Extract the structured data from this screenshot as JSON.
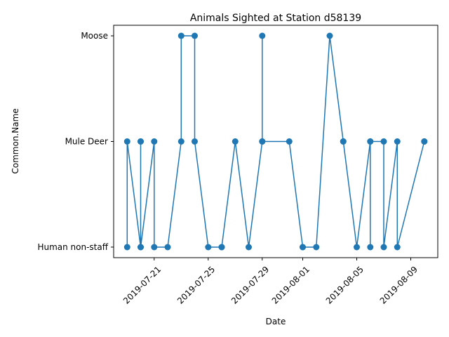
{
  "chart_data": {
    "type": "line",
    "title": "Animals Sighted at Station d58139",
    "xlabel": "Date",
    "ylabel": "Common.Name",
    "categories_y": [
      "Human non-staff",
      "Mule Deer",
      "Moose"
    ],
    "x_tick_labels": [
      "2019-07-21",
      "2019-07-25",
      "2019-07-29",
      "2019-08-01",
      "2019-08-05",
      "2019-08-09"
    ],
    "x_tick_dates": [
      "2019-07-21",
      "2019-07-25",
      "2019-07-29",
      "2019-08-01",
      "2019-08-05",
      "2019-08-09"
    ],
    "xlim": [
      "2019-07-18",
      "2019-08-11"
    ],
    "grid": false,
    "color": "#1f77b4",
    "series": [
      {
        "points": [
          [
            "2019-07-19",
            "Human non-staff"
          ],
          [
            "2019-07-19",
            "Mule Deer"
          ],
          [
            "2019-07-20",
            "Human non-staff"
          ],
          [
            "2019-07-20",
            "Mule Deer"
          ],
          [
            "2019-07-20",
            "Mule Deer"
          ],
          [
            "2019-07-20",
            "Human non-staff"
          ],
          [
            "2019-07-21",
            "Mule Deer"
          ],
          [
            "2019-07-21",
            "Human non-staff"
          ],
          [
            "2019-07-22",
            "Human non-staff"
          ],
          [
            "2019-07-23",
            "Mule Deer"
          ],
          [
            "2019-07-23",
            "Moose"
          ],
          [
            "2019-07-24",
            "Moose"
          ],
          [
            "2019-07-24",
            "Mule Deer"
          ],
          [
            "2019-07-25",
            "Human non-staff"
          ],
          [
            "2019-07-26",
            "Human non-staff"
          ],
          [
            "2019-07-26",
            "Human non-staff"
          ],
          [
            "2019-07-27",
            "Mule Deer"
          ],
          [
            "2019-07-28",
            "Human non-staff"
          ],
          [
            "2019-07-29",
            "Mule Deer"
          ],
          [
            "2019-07-29",
            "Moose"
          ],
          [
            "2019-07-29",
            "Mule Deer"
          ],
          [
            "2019-07-31",
            "Mule Deer"
          ],
          [
            "2019-08-01",
            "Human non-staff"
          ],
          [
            "2019-08-01",
            "Human non-staff"
          ],
          [
            "2019-08-02",
            "Human non-staff"
          ],
          [
            "2019-08-03",
            "Moose"
          ],
          [
            "2019-08-04",
            "Mule Deer"
          ],
          [
            "2019-08-04",
            "Mule Deer"
          ],
          [
            "2019-08-05",
            "Human non-staff"
          ],
          [
            "2019-08-06",
            "Mule Deer"
          ],
          [
            "2019-08-06",
            "Human non-staff"
          ],
          [
            "2019-08-06",
            "Mule Deer"
          ],
          [
            "2019-08-07",
            "Mule Deer"
          ],
          [
            "2019-08-07",
            "Human non-staff"
          ],
          [
            "2019-08-08",
            "Mule Deer"
          ],
          [
            "2019-08-08",
            "Human non-staff"
          ],
          [
            "2019-08-10",
            "Mule Deer"
          ],
          [
            "2019-08-10",
            "Mule Deer"
          ]
        ]
      }
    ]
  }
}
